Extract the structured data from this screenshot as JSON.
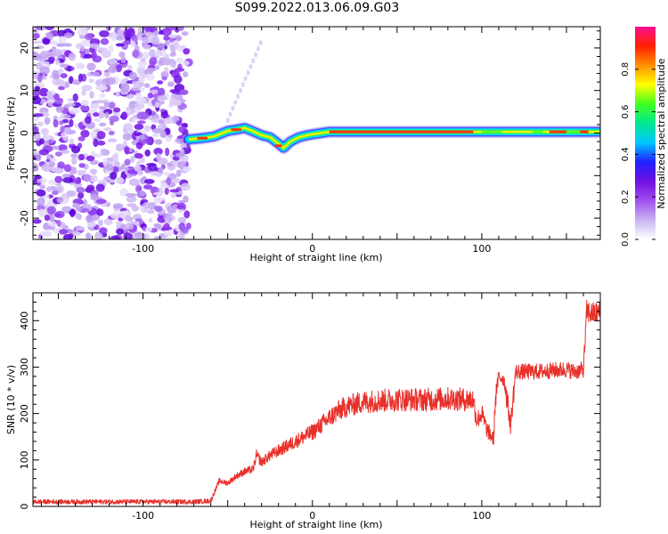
{
  "title": "S099.2022.013.06.09.G03",
  "colors": {
    "snr_line": "#e8302a",
    "axis": "#000000",
    "colorbar": [
      "#ffffff",
      "#c8b4f0",
      "#a050f0",
      "#7010e0",
      "#2020ff",
      "#00c8ff",
      "#00e890",
      "#40ff20",
      "#ffff00",
      "#ff9000",
      "#ff2000",
      "#ff1090"
    ]
  },
  "chart_data": [
    {
      "type": "heatmap",
      "title": "",
      "xlabel": "Height of straight line (km)",
      "ylabel": "Frequency (Hz)",
      "xlim": [
        -165,
        170
      ],
      "ylim": [
        -25,
        25
      ],
      "xticks": [
        -100,
        0,
        100
      ],
      "yticks": [
        -20,
        -10,
        0,
        10,
        20
      ],
      "colorbar": {
        "label": "Normalized spectral amplitude",
        "range": [
          0,
          1
        ],
        "ticks": [
          "0.0",
          "0.2",
          "0.4",
          "0.6",
          "0.8"
        ]
      },
      "noise_region_x": [
        -165,
        -73
      ],
      "trace": {
        "x": [
          -73,
          -65,
          -58,
          -50,
          -45,
          -40,
          -35,
          -30,
          -25,
          -20,
          -17,
          -13,
          -8,
          -3,
          0,
          5,
          10,
          20,
          40,
          60,
          80,
          100,
          120,
          140,
          160,
          170
        ],
        "frequency": [
          -1.5,
          -1.2,
          -0.8,
          0.5,
          0.8,
          1.2,
          0.4,
          -0.5,
          -1.0,
          -2.5,
          -3.5,
          -2.0,
          -1.0,
          -0.5,
          -0.3,
          0.0,
          0.3,
          0.3,
          0.3,
          0.3,
          0.3,
          0.3,
          0.3,
          0.3,
          0.3,
          0.3
        ]
      }
    },
    {
      "type": "line",
      "title": "",
      "xlabel": "Height of straight line (km)",
      "ylabel": "SNR (10 * v/v)",
      "xlim": [
        -165,
        170
      ],
      "ylim": [
        0,
        460
      ],
      "xticks": [
        -100,
        0,
        100
      ],
      "yticks": [
        0,
        100,
        200,
        300,
        400
      ],
      "series": [
        {
          "x": [
            -165,
            -150,
            -120,
            -90,
            -70,
            -60,
            -55,
            -50,
            -45,
            -40,
            -35,
            -33,
            -30,
            -25,
            -20,
            -15,
            -10,
            -5,
            0,
            5,
            10,
            15,
            20,
            25,
            30,
            40,
            50,
            60,
            70,
            80,
            90,
            95,
            97,
            100,
            103,
            107,
            108,
            110,
            113,
            115,
            117,
            120,
            130,
            140,
            150,
            155,
            160,
            162,
            165,
            170
          ],
          "values": [
            10,
            10,
            10,
            10,
            10,
            12,
            55,
            50,
            65,
            75,
            80,
            110,
            95,
            110,
            120,
            130,
            140,
            150,
            160,
            175,
            190,
            205,
            215,
            220,
            225,
            228,
            230,
            230,
            230,
            232,
            230,
            230,
            185,
            200,
            165,
            145,
            230,
            280,
            275,
            230,
            175,
            290,
            290,
            292,
            295,
            290,
            295,
            420,
            415,
            418
          ]
        }
      ]
    }
  ]
}
